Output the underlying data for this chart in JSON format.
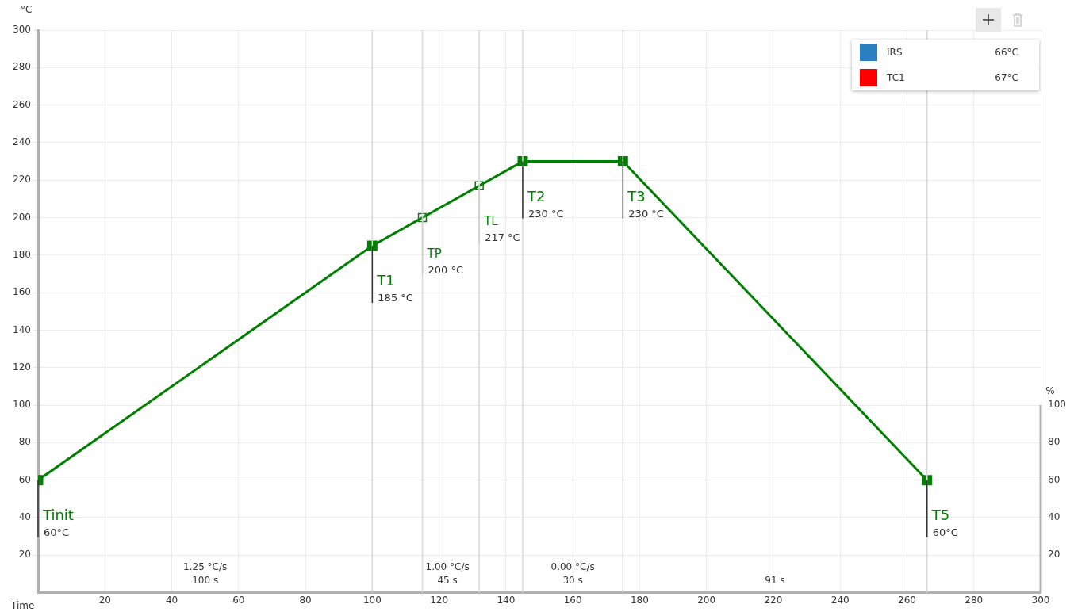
{
  "chart_data": {
    "type": "line",
    "xlabel": "Time",
    "ylabel": "°C",
    "y2label": "%",
    "xlim": [
      0,
      300
    ],
    "xticks": [
      {
        "value": 0,
        "label": null
      },
      20,
      40,
      60,
      80,
      100,
      120,
      140,
      160,
      180,
      200,
      220,
      240,
      260,
      280,
      300
    ],
    "ylim": [
      0,
      300
    ],
    "yticks": [
      20,
      40,
      60,
      80,
      100,
      120,
      140,
      160,
      180,
      200,
      220,
      240,
      260,
      280,
      300
    ],
    "y2lim": [
      0,
      300
    ],
    "y2ticks": [
      20,
      40,
      60,
      80,
      100
    ],
    "grid": true,
    "legend": "top right",
    "marker": "square",
    "line_style": "solid",
    "series": [
      {
        "color": "#008000",
        "x": [
          0,
          100,
          145,
          175,
          266
        ],
        "values": [
          60,
          185,
          230,
          230,
          60
        ]
      },
      {
        "type": "scatter",
        "color": "#008000",
        "x": [
          115,
          132
        ],
        "values": [
          200,
          217
        ]
      },
      {
        "name": "IRS",
        "color": "#2a7fc1"
      },
      {
        "name": "TC1",
        "color": "#ff0000"
      }
    ],
    "ref_lines": [
      {
        "axis": "x",
        "value": 100,
        "color": "#d8d8d8"
      },
      {
        "axis": "x",
        "value": 115,
        "color": "#d8d8d8"
      },
      {
        "axis": "x",
        "value": 132,
        "color": "#d8d8d8"
      },
      {
        "axis": "x",
        "value": 145,
        "color": "#d8d8d8"
      },
      {
        "axis": "x",
        "value": 175,
        "color": "#d8d8d8"
      },
      {
        "axis": "x",
        "value": 266,
        "color": "#d8d8d8"
      }
    ],
    "annotations": [
      {
        "text": "Tinit\n60°C",
        "x": 0,
        "y": 60
      },
      {
        "text": "T1\n185 °C",
        "x": 100,
        "y": 185
      },
      {
        "text": "TP\n200 °C",
        "x": 115,
        "y": 200
      },
      {
        "text": "TL\n217 °C",
        "x": 132,
        "y": 217
      },
      {
        "text": "T2\n230 °C",
        "x": 145,
        "y": 230
      },
      {
        "text": "T3\n230 °C",
        "x": 175,
        "y": 230
      },
      {
        "text": "T5\n60°C",
        "x": 266,
        "y": 60
      },
      "1.25 °C/s\n100 s",
      "1.00 °C/s\n45 s",
      "0.00 °C/s\n30 s",
      "\n91 s",
      "66°C",
      "67°C"
    ]
  }
}
